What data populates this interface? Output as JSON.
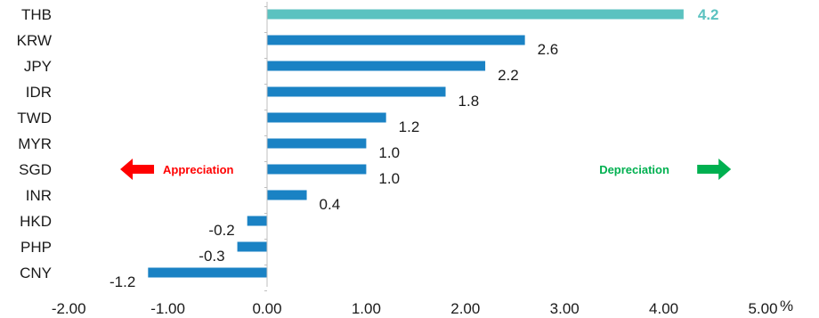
{
  "chart_data": {
    "type": "bar",
    "orientation": "horizontal",
    "categories": [
      "THB",
      "KRW",
      "JPY",
      "IDR",
      "TWD",
      "MYR",
      "SGD",
      "INR",
      "HKD",
      "PHP",
      "CNY"
    ],
    "values": [
      4.2,
      2.6,
      2.2,
      1.8,
      1.2,
      1.0,
      1.0,
      0.4,
      -0.2,
      -0.3,
      -1.2
    ],
    "value_labels": [
      "4.2",
      "2.6",
      "2.2",
      "1.8",
      "1.2",
      "1.0",
      "1.0",
      "0.4",
      "-0.2",
      "-0.3",
      "-1.2"
    ],
    "highlight_index": 0,
    "xlim": [
      -2.0,
      5.0
    ],
    "x_ticks": [
      -2,
      -1,
      0,
      1,
      2,
      3,
      4,
      5
    ],
    "x_tick_labels": [
      "-2.00",
      "-1.00",
      "0.00",
      "1.00",
      "2.00",
      "3.00",
      "4.00",
      "5.00"
    ],
    "x_unit": "%",
    "grid": false,
    "colors": {
      "bar": "#1a82c4",
      "highlight": "#5bc2c0",
      "appreciation": "#ff0000",
      "depreciation": "#00b050"
    },
    "annotations": [
      {
        "text": "Appreciation",
        "arrow": "left",
        "color": "#ff0000",
        "x": -1.05,
        "category": "SGD"
      },
      {
        "text": "Depreciation",
        "arrow": "right",
        "color": "#00b050",
        "x": 3.35,
        "category": "SGD"
      }
    ]
  }
}
